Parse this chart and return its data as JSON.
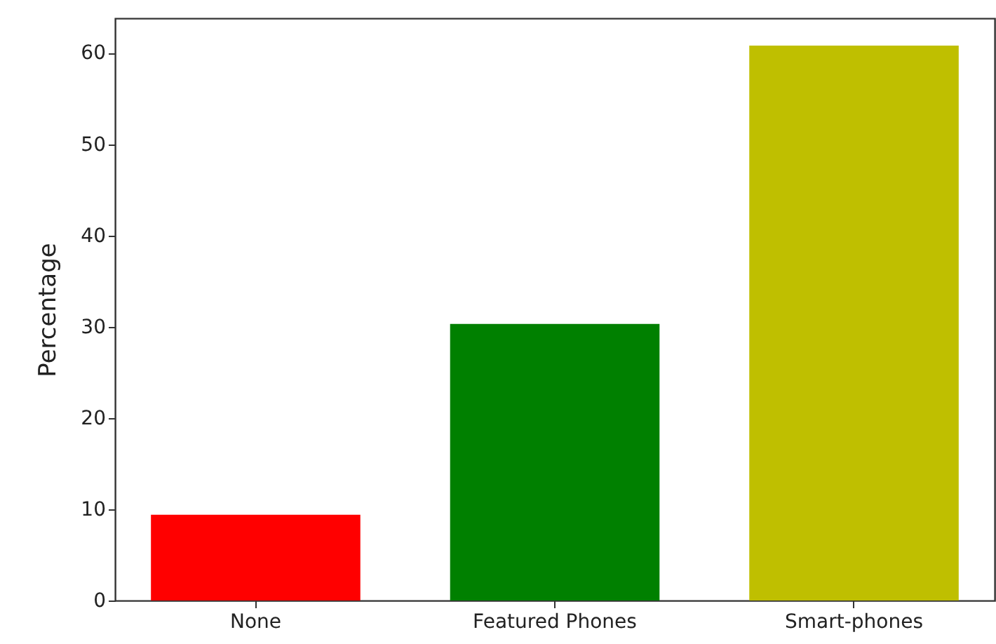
{
  "chart_data": {
    "type": "bar",
    "ylabel": "Percentage",
    "categories": [
      "None",
      "Featured Phones",
      "Smart-phones"
    ],
    "values": [
      9.4,
      30.3,
      60.8
    ],
    "colors": [
      "#ff0000",
      "#008000",
      "#bfbf00"
    ],
    "ylim": [
      0,
      63.8
    ],
    "yticks": [
      0,
      10,
      20,
      30,
      40,
      50,
      60
    ],
    "grid": false
  }
}
